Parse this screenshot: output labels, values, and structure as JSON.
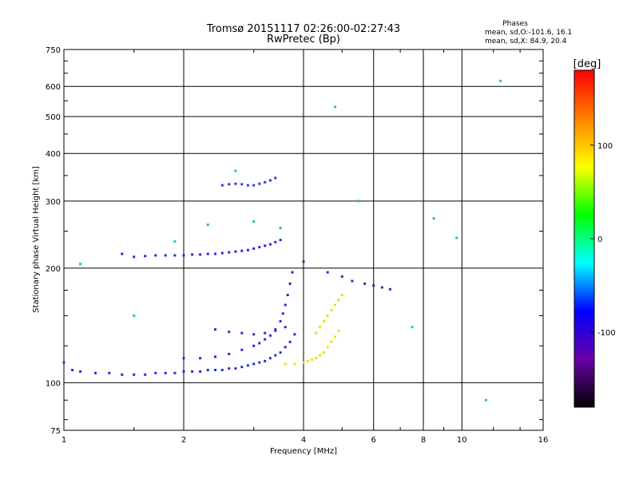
{
  "chart_data": {
    "type": "scatter",
    "title": "Tromsø 20151117 02:26:00-02:27:43",
    "subtitle": "RwPretec (Bp)",
    "xlabel": "Frequency [MHz]",
    "ylabel": "Stationary phase Virtual Height [km]",
    "x_scale": "log",
    "y_scale": "log",
    "xlim": [
      1,
      16
    ],
    "ylim": [
      75,
      750
    ],
    "x_ticks": [
      1,
      2,
      4,
      6,
      8,
      10,
      16
    ],
    "x_tick_labels": [
      "1",
      "2",
      "4",
      "6",
      "8",
      "10",
      "16"
    ],
    "y_ticks": [
      75,
      100,
      200,
      300,
      400,
      500,
      600,
      750
    ],
    "y_tick_labels": [
      "75",
      "100",
      "200",
      "300",
      "400",
      "500",
      "600",
      "750"
    ],
    "grid": true,
    "info": {
      "heading": "Phases",
      "line1": "mean, sd,O:-101.6, 16.1",
      "line2": "mean, sd,X:  84.9, 20.4"
    },
    "colorbar": {
      "label": "[deg]",
      "range": [
        -180,
        180
      ],
      "ticks": [
        100,
        0,
        -100
      ],
      "tick_labels": [
        "100",
        "0",
        "-100"
      ],
      "colors": [
        "#000000",
        "#6a00a8",
        "#0000ff",
        "#00ffff",
        "#00ff00",
        "#ffff00",
        "#ff8000",
        "#ff0000"
      ]
    },
    "series": [
      {
        "name": "",
        "phase": -100,
        "color": "#2030e0",
        "x": [
          1.0,
          1.05,
          1.1,
          1.2,
          1.3,
          1.4,
          1.5,
          1.6,
          1.7,
          1.8,
          1.9,
          2.0,
          2.1,
          2.2,
          2.3,
          2.4,
          2.5,
          2.6,
          2.7,
          2.8,
          2.9,
          3.0,
          3.1,
          3.2,
          3.3,
          3.4,
          3.5,
          3.6,
          3.7,
          3.8
        ],
        "y": [
          113,
          108,
          107,
          106,
          106,
          105,
          105,
          105,
          106,
          106,
          106,
          107,
          107,
          107,
          108,
          108,
          108,
          109,
          109,
          110,
          111,
          112,
          113,
          114,
          116,
          118,
          120,
          124,
          128,
          134
        ]
      },
      {
        "name": "",
        "phase": -120,
        "color": "#3d1fd0",
        "x": [
          2.0,
          2.2,
          2.4,
          2.6,
          2.8,
          3.0,
          3.1,
          3.2,
          3.3,
          3.4,
          3.5,
          3.55,
          3.6,
          3.65,
          3.7,
          3.75
        ],
        "y": [
          116,
          116,
          117,
          119,
          122,
          125,
          127,
          130,
          133,
          138,
          145,
          152,
          160,
          170,
          182,
          195
        ]
      },
      {
        "name": "",
        "phase": -110,
        "color": "#2a28e0",
        "x": [
          1.4,
          1.5,
          1.6,
          1.7,
          1.8,
          1.9,
          2.0,
          2.1,
          2.2,
          2.3,
          2.4,
          2.5,
          2.6,
          2.7,
          2.8,
          2.9,
          3.0,
          3.1,
          3.2,
          3.3,
          3.4,
          3.5
        ],
        "y": [
          218,
          214,
          215,
          216,
          216,
          216,
          216,
          217,
          217,
          218,
          218,
          219,
          220,
          221,
          222,
          223,
          225,
          227,
          229,
          231,
          234,
          237
        ]
      },
      {
        "name": "",
        "phase": -130,
        "color": "#4a1fc0",
        "x": [
          2.4,
          2.6,
          2.8,
          3.0,
          3.2,
          3.4,
          3.6
        ],
        "y": [
          138,
          136,
          135,
          134,
          135,
          137,
          140
        ]
      },
      {
        "name": "",
        "phase": -100,
        "color": "#2e3ae0",
        "x": [
          2.5,
          2.6,
          2.7,
          2.8,
          2.9,
          3.0,
          3.1,
          3.2,
          3.3,
          3.4
        ],
        "y": [
          330,
          332,
          333,
          332,
          330,
          330,
          333,
          336,
          340,
          345
        ]
      },
      {
        "name": "",
        "phase": 90,
        "color": "#e6e600",
        "x": [
          3.6,
          3.8,
          4.0,
          4.1,
          4.2,
          4.3,
          4.4,
          4.5,
          4.6,
          4.7,
          4.8,
          4.9
        ],
        "y": [
          112,
          112,
          113,
          114,
          115,
          116,
          118,
          120,
          124,
          128,
          132,
          137
        ]
      },
      {
        "name": "",
        "phase": 80,
        "color": "#d8e800",
        "x": [
          4.3,
          4.4,
          4.5,
          4.6,
          4.7,
          4.8,
          4.9,
          5.0
        ],
        "y": [
          135,
          140,
          145,
          150,
          155,
          160,
          165,
          170
        ]
      },
      {
        "name": "",
        "phase": -140,
        "color": "#5a18b8",
        "x": [
          4.0,
          4.6,
          5.0,
          5.3,
          5.7,
          6.0,
          6.3,
          6.6
        ],
        "y": [
          208,
          195,
          190,
          185,
          182,
          180,
          178,
          176
        ]
      },
      {
        "name": "",
        "phase": 20,
        "color": "#30c0a0",
        "x": [
          1.1,
          1.5,
          1.9,
          2.3,
          2.7,
          3.0,
          3.5,
          4.8,
          5.5,
          7.5,
          8.5,
          9.7,
          11.5,
          12.5
        ],
        "y": [
          205,
          150,
          235,
          260,
          360,
          265,
          255,
          530,
          300,
          140,
          270,
          240,
          90,
          620
        ]
      }
    ]
  }
}
